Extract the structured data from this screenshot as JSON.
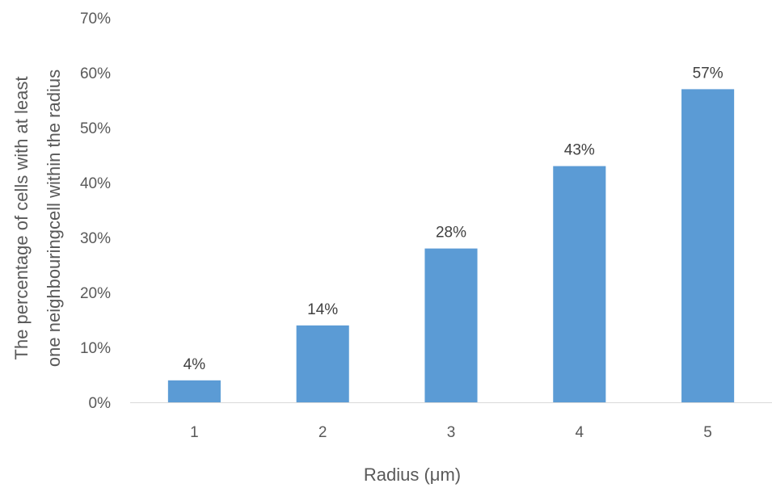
{
  "chart_data": {
    "type": "bar",
    "title": "",
    "xlabel": "Radius (μm)",
    "ylabel_lines": [
      "The percentage of cells with at least",
      "one neighbouringcell within the radius"
    ],
    "categories": [
      "1",
      "2",
      "3",
      "4",
      "5"
    ],
    "values": [
      4,
      14,
      28,
      43,
      57
    ],
    "value_labels": [
      "4%",
      "14%",
      "28%",
      "43%",
      "57%"
    ],
    "ylim": [
      0,
      70
    ],
    "yticks": [
      0,
      10,
      20,
      30,
      40,
      50,
      60,
      70
    ],
    "ytick_labels": [
      "0%",
      "10%",
      "20%",
      "30%",
      "40%",
      "50%",
      "60%",
      "70%"
    ],
    "bar_color": "#5b9bd5",
    "grid": false,
    "legend": "none"
  }
}
